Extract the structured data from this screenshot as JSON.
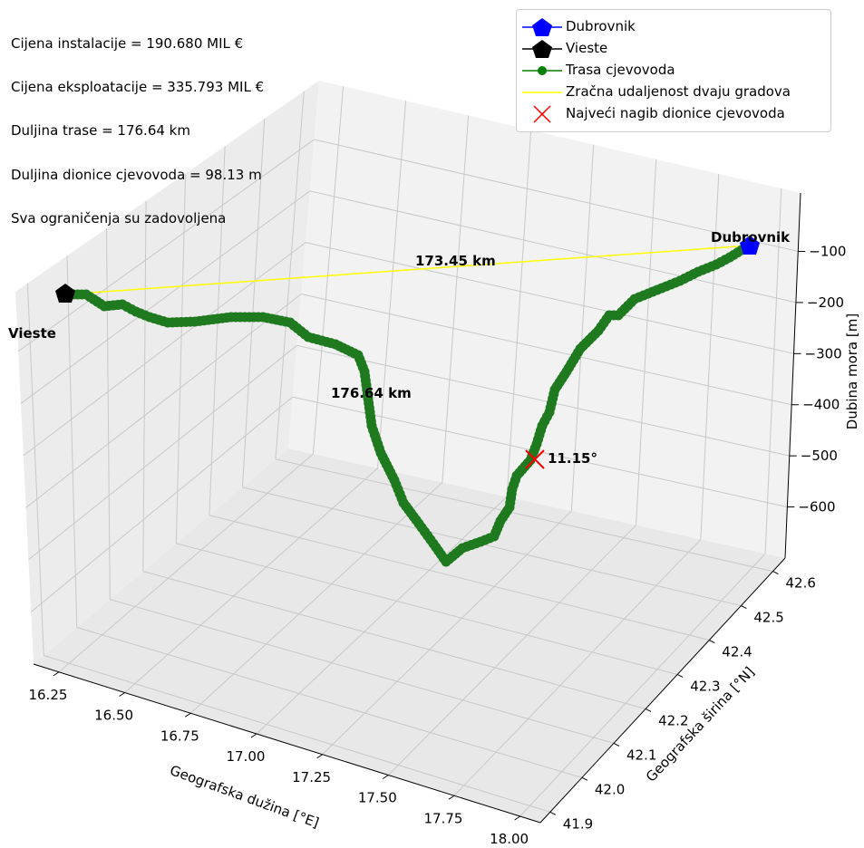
{
  "info": {
    "installation_cost": "Cijena instalacije = 190.680 MIL €",
    "operation_cost": "Cijena eksploatacije = 335.793 MIL €",
    "route_length": "Duljina trase = 176.64 km",
    "section_length": "Duljina dionice cjevovoda = 98.13 m",
    "constraints": "Sva ograničenja su zadovoljena"
  },
  "legend": {
    "dubrovnik": "Dubrovnik",
    "vieste": "Vieste",
    "route": "Trasa cjevovoda",
    "air_distance": "Zračna udaljenost dvaju gradova",
    "max_slope": "Najveći nagib dionice cjevovoda"
  },
  "colors": {
    "dubrovnik": "#0000ff",
    "vieste": "#000000",
    "route": "#008000",
    "air_line": "#ffff00",
    "max_slope": "#ff0000"
  },
  "chart_data": {
    "type": "line",
    "projection": "3d",
    "xlabel": "Geografska dužina [°E]",
    "ylabel": "Geografska širina [°N]",
    "zlabel": "Dubina mora [m]",
    "x_ticks": [
      "16.25",
      "16.50",
      "16.75",
      "17.00",
      "17.25",
      "17.50",
      "17.75",
      "18.00"
    ],
    "y_ticks": [
      "41.9",
      "42.0",
      "42.1",
      "42.2",
      "42.3",
      "42.4",
      "42.5",
      "42.6"
    ],
    "z_ticks": [
      "−100",
      "−200",
      "−300",
      "−400",
      "−500",
      "−600"
    ],
    "grid": true,
    "legend_position": "top-right",
    "annotations": {
      "dubrovnik": "Dubrovnik",
      "vieste": "Vieste",
      "air_distance": "173.45 km",
      "route_length": "176.64 km",
      "max_slope_angle": "11.15°"
    },
    "series": [
      {
        "name": "Trasa cjevovoda",
        "points": [
          {
            "x": 16.18,
            "y": 41.88,
            "z": -60
          },
          {
            "x": 16.4,
            "y": 41.93,
            "z": -150
          },
          {
            "x": 16.7,
            "y": 42.0,
            "z": -220
          },
          {
            "x": 16.95,
            "y": 42.06,
            "z": -300
          },
          {
            "x": 17.1,
            "y": 42.1,
            "z": -460
          },
          {
            "x": 17.2,
            "y": 42.15,
            "z": -560
          },
          {
            "x": 17.35,
            "y": 42.2,
            "z": -640
          },
          {
            "x": 17.5,
            "y": 42.26,
            "z": -610
          },
          {
            "x": 17.6,
            "y": 42.3,
            "z": -560
          },
          {
            "x": 17.7,
            "y": 42.36,
            "z": -440
          },
          {
            "x": 17.8,
            "y": 42.43,
            "z": -330
          },
          {
            "x": 17.9,
            "y": 42.52,
            "z": -200
          },
          {
            "x": 18.05,
            "y": 42.62,
            "z": -100
          },
          {
            "x": 18.11,
            "y": 42.65,
            "z": -80
          }
        ]
      }
    ]
  }
}
